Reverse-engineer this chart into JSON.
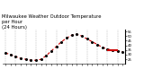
{
  "title": "Milwaukee Weather Outdoor Temperature\nper Hour\n(24 Hours)",
  "hours": [
    0,
    1,
    2,
    3,
    4,
    5,
    6,
    7,
    8,
    9,
    10,
    11,
    12,
    13,
    14,
    15,
    16,
    17,
    18,
    19,
    20,
    21,
    22,
    23
  ],
  "temps": [
    32,
    30,
    28,
    26,
    25,
    24,
    24,
    25,
    29,
    34,
    39,
    44,
    48,
    51,
    52,
    50,
    47,
    44,
    41,
    38,
    36,
    35,
    34,
    33
  ],
  "current_hour": 21,
  "current_temp": 35,
  "line_color": "#cc0000",
  "dot_color": "#000000",
  "current_line_color": "#cc0000",
  "bg_color": "#ffffff",
  "ylim": [
    20,
    57
  ],
  "ytick_values": [
    25,
    30,
    35,
    40,
    45,
    50,
    55
  ],
  "ytick_labels": [
    "25",
    "30",
    "35",
    "40",
    "45",
    "50",
    "55"
  ],
  "grid_color": "#888888",
  "title_fontsize": 3.8,
  "tick_fontsize": 2.8
}
